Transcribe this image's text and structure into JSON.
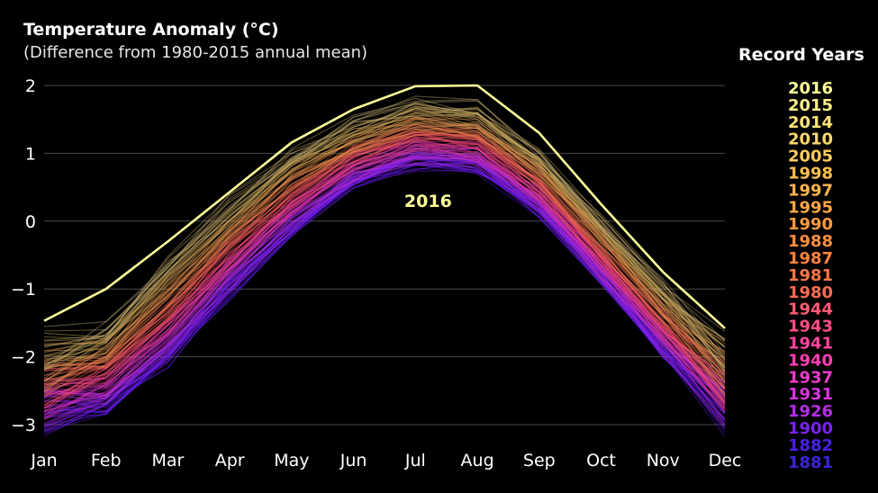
{
  "chart_data": {
    "type": "line",
    "title": "Temperature Anomaly (°C)",
    "subtitle": "(Difference from 1980-2015 annual mean)",
    "categories": [
      "Jan",
      "Feb",
      "Mar",
      "Apr",
      "May",
      "Jun",
      "Jul",
      "Aug",
      "Sep",
      "Oct",
      "Nov",
      "Dec"
    ],
    "ylim": [
      -3.3,
      2.1
    ],
    "yticks": [
      2,
      1,
      0,
      -1,
      -2,
      -3
    ],
    "ytick_labels": [
      "2",
      "1",
      "0",
      "−1",
      "−2",
      "−3"
    ],
    "grid": true,
    "highlight_series": {
      "name": "2016",
      "color": "#ffff99",
      "values": [
        -1.47,
        -1.0,
        -0.3,
        0.43,
        1.16,
        1.65,
        1.99,
        2.0,
        1.3,
        0.25,
        -0.75,
        -1.58
      ]
    },
    "annotation": {
      "text": "2016",
      "x": "Jul",
      "y": 0.3,
      "color": "#ffff99"
    },
    "legend": {
      "title": "Record Years",
      "placement": "right",
      "entries": [
        {
          "year": "2016",
          "color": "#ffff99"
        },
        {
          "year": "2015",
          "color": "#fff08a"
        },
        {
          "year": "2014",
          "color": "#ffe47a"
        },
        {
          "year": "2010",
          "color": "#ffd86a"
        },
        {
          "year": "2005",
          "color": "#ffcc5c"
        },
        {
          "year": "1998",
          "color": "#ffc050"
        },
        {
          "year": "1997",
          "color": "#ffb44a"
        },
        {
          "year": "1995",
          "color": "#ffa845"
        },
        {
          "year": "1990",
          "color": "#ff9c42"
        },
        {
          "year": "1988",
          "color": "#ff9040"
        },
        {
          "year": "1987",
          "color": "#ff843f"
        },
        {
          "year": "1981",
          "color": "#ff7845"
        },
        {
          "year": "1980",
          "color": "#ff6c55"
        },
        {
          "year": "1944",
          "color": "#ff5a75"
        },
        {
          "year": "1943",
          "color": "#ff4d8a"
        },
        {
          "year": "1941",
          "color": "#ff45a0"
        },
        {
          "year": "1940",
          "color": "#ff3fb5"
        },
        {
          "year": "1937",
          "color": "#f03ccc"
        },
        {
          "year": "1931",
          "color": "#d936df"
        },
        {
          "year": "1926",
          "color": "#b52de8"
        },
        {
          "year": "1900",
          "color": "#7a22ef"
        },
        {
          "year": "1882",
          "color": "#4a20e6"
        },
        {
          "year": "1881",
          "color": "#3a25d8"
        }
      ]
    },
    "background_band": {
      "description_colors": [
        "#6a18ff",
        "#e030c0",
        "#ff5a60",
        "#d4a040",
        "#b0a070"
      ],
      "num_years": 137,
      "cool_values": [
        -2.95,
        -2.75,
        -2.05,
        -1.05,
        -0.15,
        0.55,
        0.85,
        0.78,
        0.15,
        -0.88,
        -1.95,
        -2.85
      ],
      "warm_values": [
        -1.85,
        -1.55,
        -0.55,
        0.3,
        1.0,
        1.45,
        1.72,
        1.68,
        1.0,
        0.05,
        -0.95,
        -1.85
      ]
    }
  }
}
